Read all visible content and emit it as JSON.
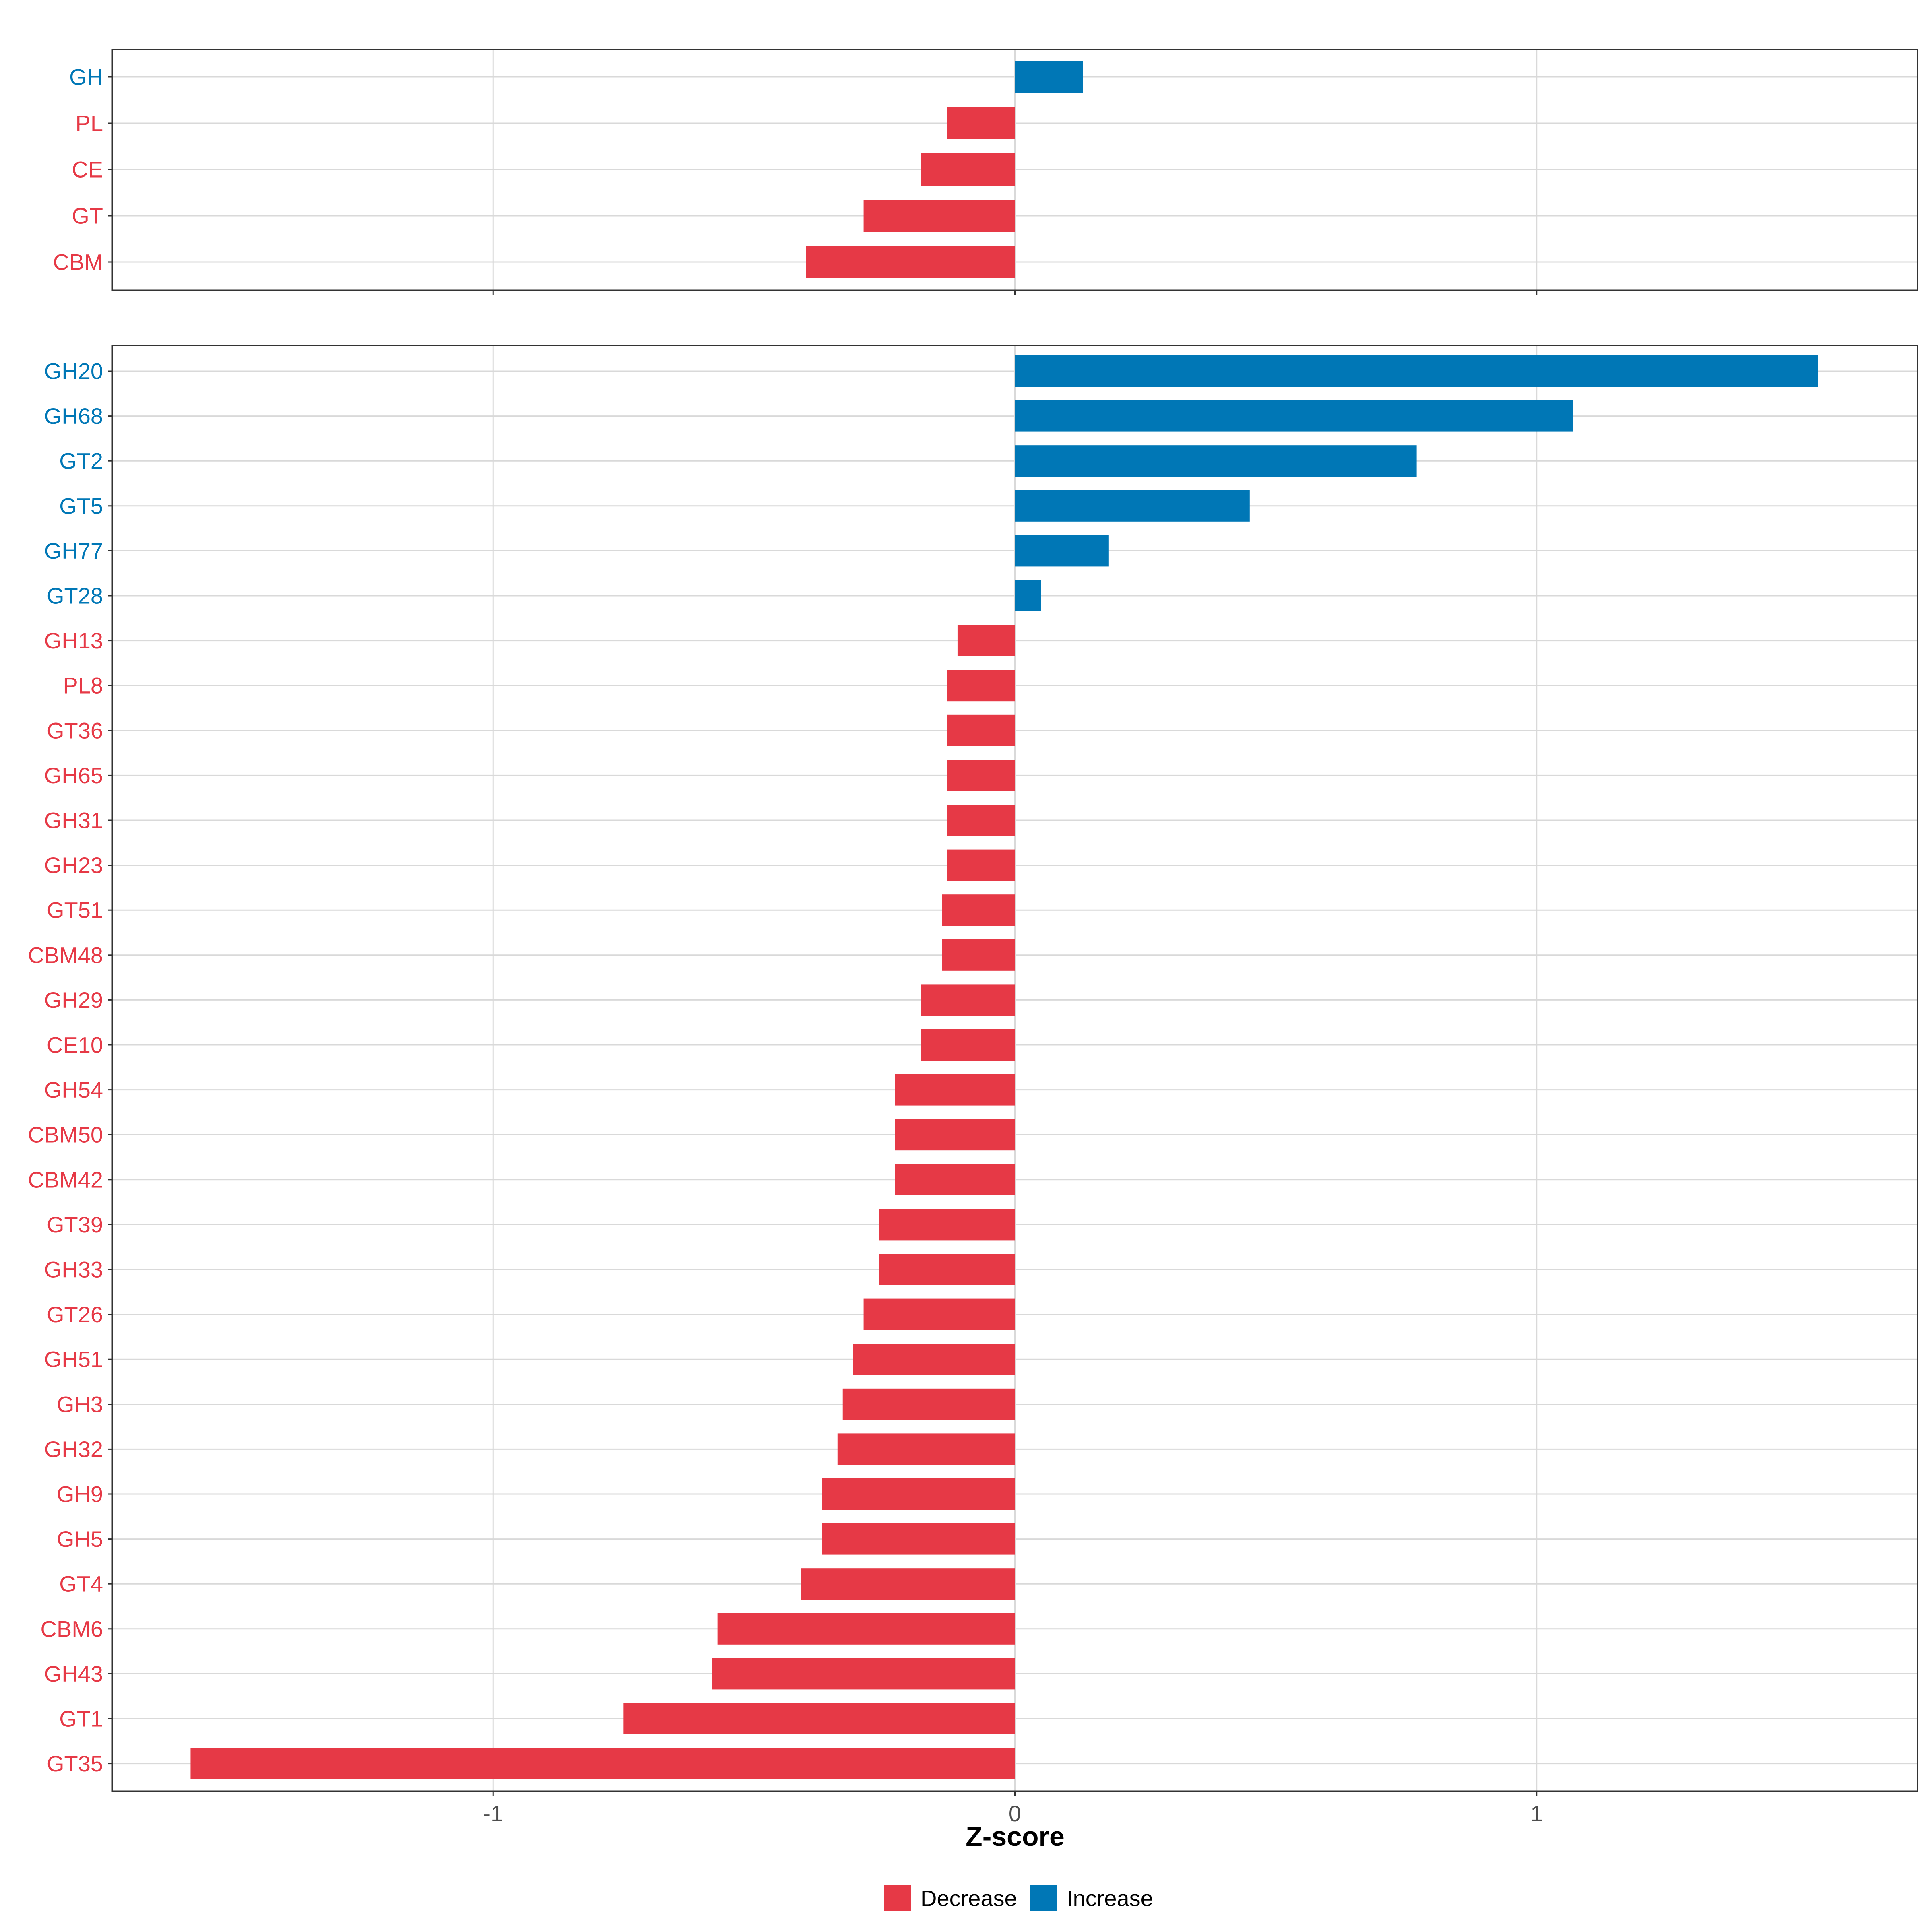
{
  "colors": {
    "decrease": "#e63946",
    "increase": "#0077b6"
  },
  "chart_data": [
    {
      "type": "bar",
      "orientation": "horizontal",
      "panel": "top",
      "categories": [
        "GH",
        "PL",
        "CE",
        "GT",
        "CBM"
      ],
      "values": [
        0.13,
        -0.13,
        -0.18,
        -0.29,
        -0.4
      ],
      "directions": [
        "Increase",
        "Decrease",
        "Decrease",
        "Decrease",
        "Decrease"
      ],
      "xlim": [
        -1.73,
        1.73
      ],
      "xticks": [
        -1,
        0,
        1
      ],
      "grid": true
    },
    {
      "type": "bar",
      "orientation": "horizontal",
      "panel": "bottom",
      "categories": [
        "GH20",
        "GH68",
        "GT2",
        "GT5",
        "GH77",
        "GT28",
        "GH13",
        "PL8",
        "GT36",
        "GH65",
        "GH31",
        "GH23",
        "GT51",
        "CBM48",
        "GH29",
        "CE10",
        "GH54",
        "CBM50",
        "CBM42",
        "GT39",
        "GH33",
        "GT26",
        "GH51",
        "GH3",
        "GH32",
        "GH9",
        "GH5",
        "GT4",
        "CBM6",
        "GH43",
        "GT1",
        "GT35"
      ],
      "values": [
        1.54,
        1.07,
        0.77,
        0.45,
        0.18,
        0.05,
        -0.11,
        -0.13,
        -0.13,
        -0.13,
        -0.13,
        -0.13,
        -0.14,
        -0.14,
        -0.18,
        -0.18,
        -0.23,
        -0.23,
        -0.23,
        -0.26,
        -0.26,
        -0.29,
        -0.31,
        -0.33,
        -0.34,
        -0.37,
        -0.37,
        -0.41,
        -0.57,
        -0.58,
        -0.75,
        -1.58
      ],
      "directions": [
        "Increase",
        "Increase",
        "Increase",
        "Increase",
        "Increase",
        "Increase",
        "Decrease",
        "Decrease",
        "Decrease",
        "Decrease",
        "Decrease",
        "Decrease",
        "Decrease",
        "Decrease",
        "Decrease",
        "Decrease",
        "Decrease",
        "Decrease",
        "Decrease",
        "Decrease",
        "Decrease",
        "Decrease",
        "Decrease",
        "Decrease",
        "Decrease",
        "Decrease",
        "Decrease",
        "Decrease",
        "Decrease",
        "Decrease",
        "Decrease",
        "Decrease"
      ],
      "xlim": [
        -1.73,
        1.73
      ],
      "xticks": [
        -1,
        0,
        1
      ],
      "xtick_labels": [
        "-1",
        "0",
        "1"
      ],
      "xlabel": "Z-score",
      "grid": true
    }
  ],
  "legend": {
    "position": "bottom",
    "items": [
      {
        "label": "Decrease",
        "key": "decrease"
      },
      {
        "label": "Increase",
        "key": "increase"
      }
    ]
  }
}
